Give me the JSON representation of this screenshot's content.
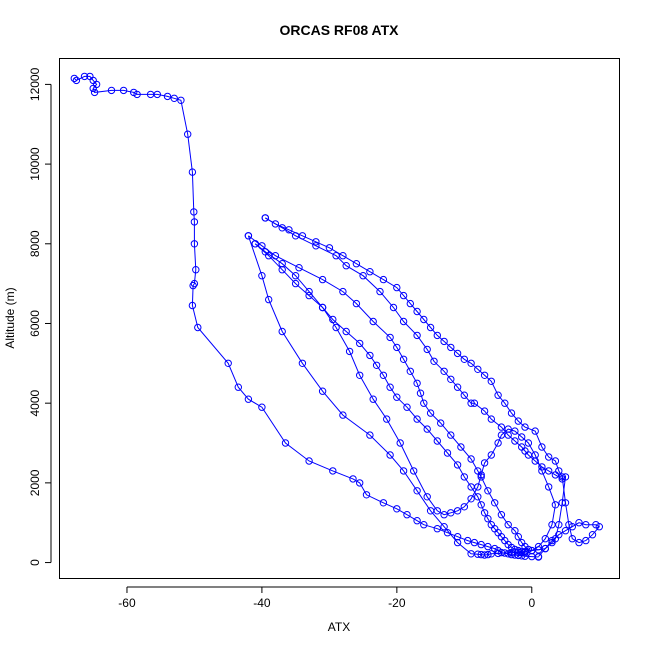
{
  "chart_data": {
    "type": "line",
    "title": "ORCAS RF08 ATX",
    "xlabel": "ATX",
    "ylabel": "Altitude (m)",
    "xlim": [
      -70,
      13
    ],
    "ylim": [
      -400,
      12650
    ],
    "xticks": [
      -60,
      -40,
      -20,
      0
    ],
    "yticks": [
      0,
      2000,
      4000,
      6000,
      8000,
      10000,
      12000
    ],
    "xtick_labels": [
      "-60",
      "-40",
      "-20",
      "0"
    ],
    "ytick_labels": [
      "0",
      "2000",
      "4000",
      "6000",
      "8000",
      "10000",
      "12000"
    ],
    "marker": "open-circle",
    "line_style": "solid",
    "grid": false,
    "legend": "none",
    "color": "#0000ff",
    "series": [
      {
        "x": [
          -67.8,
          -67.5,
          -66.3,
          -65.5,
          -65.0,
          -64.5,
          -65.0,
          -64.8,
          -62.3,
          -60.5,
          -59.0,
          -58.5,
          -56.5,
          -55.5,
          -54.0,
          -53.0,
          -52.0,
          -51.0,
          -50.3,
          -50.1,
          -50.0,
          -50.0,
          -49.8,
          -50.0,
          -50.2,
          -50.3,
          -49.5,
          -45.0,
          -43.5,
          -42.0,
          -40.0,
          -36.5,
          -33.0,
          -29.5,
          -26.5,
          -25.5,
          -24.5,
          -22.0,
          -20.0,
          -18.5,
          -17.0,
          -16.0,
          -14.0,
          -12.5,
          -11.0,
          -9.5,
          -8.5,
          -7.5,
          -6.5,
          -5.5,
          -5.0,
          -4.5,
          -3.5,
          -3.0,
          -2.5,
          -2.0,
          -1.5,
          -1.0,
          0.0,
          1.0
        ],
        "y": [
          12150,
          12100,
          12200,
          12200,
          12100,
          12000,
          11900,
          11800,
          11850,
          11850,
          11800,
          11750,
          11750,
          11750,
          11700,
          11650,
          11600,
          10750,
          9800,
          8800,
          8550,
          8000,
          7350,
          7000,
          6950,
          6450,
          5900,
          5000,
          4400,
          4100,
          3900,
          3000,
          2550,
          2300,
          2100,
          2000,
          1700,
          1500,
          1350,
          1200,
          1050,
          950,
          850,
          750,
          650,
          550,
          500,
          450,
          400,
          350,
          300,
          250,
          220,
          200,
          190,
          180,
          170,
          160,
          150,
          140
        ]
      },
      {
        "x": [
          1.0,
          2.0,
          3.0,
          4.0,
          5.0,
          6.0,
          7.0,
          8.0,
          9.5,
          10.0,
          9.0,
          8.0,
          7.0,
          6.0,
          5.5,
          5.0,
          4.5,
          4.0,
          3.5,
          2.5,
          1.5,
          0.5,
          -1.0,
          -2.0,
          -3.0,
          -4.0,
          -5.0,
          -6.0,
          -7.0,
          -8.0,
          -9.0,
          -10.0,
          -11.0,
          -12.0,
          -13.0,
          -14.0,
          -15.0,
          -16.0,
          -17.0,
          -18.0,
          -19.0,
          -20.0,
          -22.0,
          -24.0,
          -26.0,
          -28.0,
          -30.0,
          -32.0,
          -34.0,
          -36.0,
          -38.0,
          -39.5
        ],
        "y": [
          150,
          350,
          550,
          700,
          800,
          900,
          1000,
          950,
          950,
          900,
          700,
          550,
          500,
          600,
          950,
          1500,
          2150,
          2300,
          2550,
          2650,
          2900,
          3300,
          3400,
          3550,
          3750,
          4000,
          4200,
          4550,
          4700,
          4850,
          5000,
          5100,
          5250,
          5400,
          5550,
          5700,
          5900,
          6100,
          6300,
          6500,
          6700,
          6900,
          7100,
          7300,
          7500,
          7700,
          7900,
          8050,
          8200,
          8350,
          8500,
          8650
        ]
      },
      {
        "x": [
          -39.5,
          -37.0,
          -35.0,
          -32.0,
          -29.0,
          -27.5,
          -25.0,
          -22.5,
          -20.5,
          -19.0,
          -17.0,
          -15.5,
          -14.5,
          -13.0,
          -12.0,
          -11.0,
          -10.0,
          -9.0,
          -8.5,
          -7.0,
          -6.0,
          -4.5,
          -3.5,
          -2.5,
          -1.5,
          -1.0,
          -0.5,
          0.5,
          1.5,
          2.5,
          3.5,
          4.5,
          5.0,
          4.5,
          4.0,
          3.5,
          3.0,
          2.0,
          1.0,
          0.0,
          -1.0,
          -2.0,
          -3.0,
          -4.0,
          -5.0,
          -6.0,
          -6.5,
          -7.0,
          -7.5,
          -8.0,
          -9.0,
          -11.0,
          -13.0,
          -15.0,
          -17.0,
          -19.0,
          -21.0,
          -24.0,
          -28.0,
          -31.0,
          -34.0,
          -37.0,
          -39.0,
          -40.0,
          -42.0
        ],
        "y": [
          8650,
          8400,
          8200,
          7950,
          7700,
          7450,
          7200,
          6800,
          6400,
          6050,
          5700,
          5350,
          5050,
          4800,
          4600,
          4400,
          4200,
          4000,
          4000,
          3800,
          3600,
          3400,
          3200,
          3050,
          2900,
          2800,
          2700,
          2550,
          2400,
          2300,
          2200,
          2100,
          2150,
          1500,
          950,
          600,
          500,
          350,
          320,
          300,
          280,
          260,
          250,
          240,
          230,
          220,
          200,
          190,
          200,
          210,
          220,
          500,
          900,
          1300,
          1800,
          2300,
          2700,
          3200,
          3700,
          4300,
          5000,
          5800,
          6600,
          7200,
          8200
        ]
      },
      {
        "x": [
          -42.0,
          -40.0,
          -38.0,
          -34.5,
          -31.0,
          -28.0,
          -26.0,
          -23.5,
          -21.0,
          -20.0,
          -19.0,
          -18.0,
          -17.0,
          -16.5,
          -16.0,
          -15.0,
          -13.5,
          -12.0,
          -10.5,
          -9.0,
          -8.0,
          -7.5,
          -6.5,
          -5.5,
          -4.5,
          -3.5,
          -2.5,
          -2.0,
          -1.5,
          -1.0,
          -0.5,
          0.0,
          1.0,
          2.0,
          3.0,
          3.5,
          2.5,
          1.5,
          0.5,
          -0.5,
          -1.5,
          -2.5,
          -3.5,
          -4.5,
          -5.0,
          -6.0,
          -7.0,
          -7.5,
          -8.0,
          -9.0,
          -10.0,
          -11.0,
          -12.0,
          -13.0,
          -14.0,
          -15.5,
          -17.5,
          -19.5,
          -21.5,
          -23.5,
          -25.5,
          -27.0,
          -29.0,
          -31.0,
          -33.0,
          -35.0,
          -37.0,
          -39.5,
          -41.0
        ],
        "y": [
          8200,
          7950,
          7700,
          7400,
          7100,
          6800,
          6500,
          6050,
          5650,
          5400,
          5100,
          4800,
          4500,
          4250,
          4000,
          3750,
          3500,
          3200,
          2900,
          2600,
          2300,
          2150,
          1800,
          1500,
          1200,
          950,
          800,
          650,
          500,
          400,
          330,
          300,
          400,
          600,
          950,
          1450,
          1900,
          2300,
          2700,
          3000,
          3150,
          3300,
          3350,
          3200,
          3000,
          2700,
          2500,
          2200,
          1900,
          1600,
          1400,
          1300,
          1250,
          1200,
          1300,
          1650,
          2300,
          3000,
          3600,
          4100,
          4700,
          5300,
          5900,
          6400,
          6800,
          7200,
          7500,
          7800,
          8000
        ]
      },
      {
        "x": [
          -41.0,
          -39.0,
          -37.0,
          -35.0,
          -33.0,
          -31.0,
          -29.5,
          -27.5,
          -25.5,
          -24.0,
          -23.0,
          -22.0,
          -21.0,
          -20.0,
          -18.5,
          -17.0,
          -15.5,
          -14.0,
          -12.5,
          -11.0,
          -10.0,
          -9.0,
          -8.0,
          -7.5,
          -7.0,
          -6.5,
          -6.0,
          -5.5,
          -5.0,
          -4.5,
          -4.0,
          -3.5,
          -3.0,
          -2.5,
          -2.0,
          -1.5,
          -1.0
        ],
        "y": [
          8000,
          7700,
          7350,
          7000,
          6700,
          6400,
          6100,
          5800,
          5500,
          5200,
          4950,
          4700,
          4400,
          4150,
          3900,
          3600,
          3350,
          3050,
          2750,
          2450,
          2150,
          1900,
          1650,
          1450,
          1250,
          1100,
          950,
          850,
          750,
          650,
          550,
          450,
          380,
          330,
          300,
          270,
          250
        ]
      }
    ]
  }
}
